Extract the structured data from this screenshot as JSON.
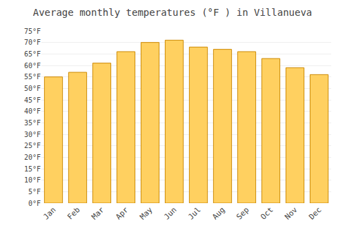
{
  "chart_data": {
    "type": "bar",
    "title": "Average monthly temperatures (°F ) in Villanueva",
    "categories": [
      "Jan",
      "Feb",
      "Mar",
      "Apr",
      "May",
      "Jun",
      "Jul",
      "Aug",
      "Sep",
      "Oct",
      "Nov",
      "Dec"
    ],
    "values": [
      55,
      57,
      61,
      66,
      70,
      71,
      68,
      67,
      66,
      63,
      59,
      56
    ],
    "color": "#FFD060",
    "ylim": [
      0,
      75
    ],
    "yticks": [
      {
        "value": 0,
        "label": "0°F"
      },
      {
        "value": 5,
        "label": "5°F"
      },
      {
        "value": 10,
        "label": "10°F"
      },
      {
        "value": 15,
        "label": "15°F"
      },
      {
        "value": 20,
        "label": "20°F"
      },
      {
        "value": 25,
        "label": "25°F"
      },
      {
        "value": 30,
        "label": "30°F"
      },
      {
        "value": 35,
        "label": "35°F"
      },
      {
        "value": 40,
        "label": "40°F"
      },
      {
        "value": 45,
        "label": "45°F"
      },
      {
        "value": 50,
        "label": "50°F"
      },
      {
        "value": 55,
        "label": "55°F"
      },
      {
        "value": 60,
        "label": "60°F"
      },
      {
        "value": 65,
        "label": "65°F"
      },
      {
        "value": 70,
        "label": "70°F"
      },
      {
        "value": 75,
        "label": "75°F"
      }
    ],
    "grid": true
  }
}
